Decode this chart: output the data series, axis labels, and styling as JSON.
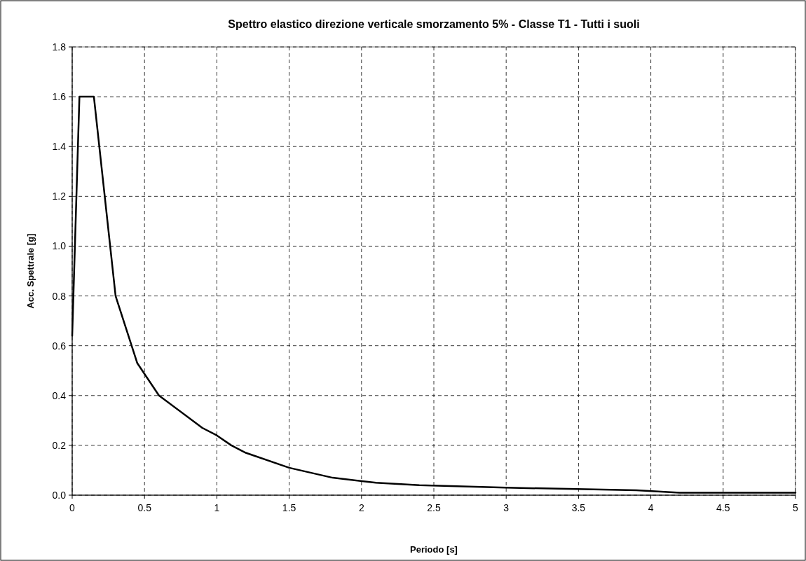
{
  "chart_data": {
    "type": "line",
    "title": "Spettro elastico direzione verticale smorzamento 5% - Classe T1 - Tutti i suoli",
    "xlabel": "Periodo [s]",
    "ylabel": "Acc. Spettrale [g]",
    "x": [
      0,
      0.05,
      0.15,
      0.3,
      0.45,
      0.6,
      0.9,
      1.0,
      1.1,
      1.2,
      1.5,
      1.8,
      2.1,
      2.4,
      3,
      3.9,
      4.2,
      4.5,
      5
    ],
    "series": [
      {
        "color": "#000000",
        "values": [
          0.64,
          1.6,
          1.6,
          0.8,
          0.53,
          0.4,
          0.27,
          0.24,
          0.2,
          0.17,
          0.11,
          0.07,
          0.05,
          0.04,
          0.03,
          0.02,
          0.01,
          0.01,
          0.01
        ]
      }
    ],
    "xlim": [
      0,
      5
    ],
    "xticks": [
      0,
      0.5,
      1,
      1.5,
      2,
      2.5,
      3,
      3.5,
      4,
      4.5,
      5
    ],
    "ylim": [
      0,
      1.8
    ],
    "yticks": [
      {
        "value": 0,
        "label": "0.0"
      },
      {
        "value": 0.2,
        "label": "0.2"
      },
      {
        "value": 0.4,
        "label": "0.4"
      },
      {
        "value": 0.6,
        "label": "0.6"
      },
      {
        "value": 0.8,
        "label": "0.8"
      },
      {
        "value": 1,
        "label": "1.0"
      },
      {
        "value": 1.2,
        "label": "1.2"
      },
      {
        "value": 1.4,
        "label": "1.4"
      },
      {
        "value": 1.6,
        "label": "1.6"
      },
      {
        "value": 1.8,
        "label": "1.8"
      }
    ],
    "grid": true,
    "marker": "none",
    "line_style": "solid"
  }
}
